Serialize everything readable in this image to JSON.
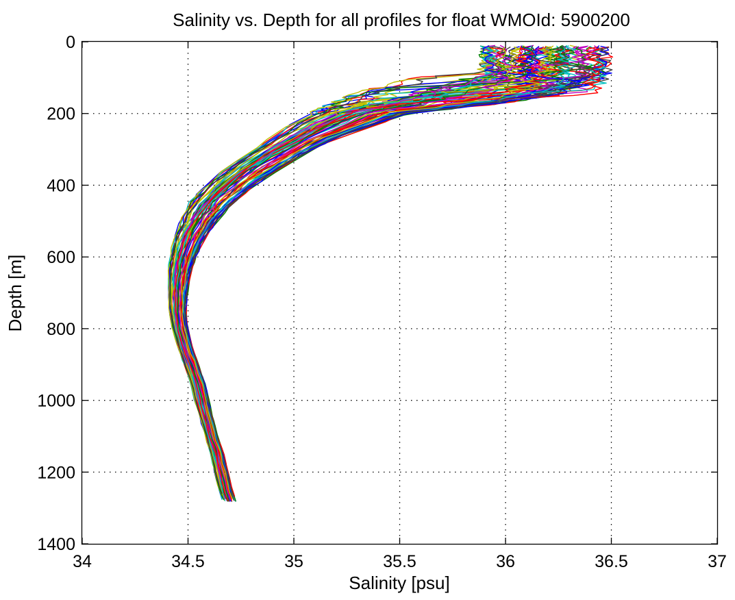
{
  "chart_data": {
    "type": "line",
    "title": "Salinity vs. Depth for all profiles for float WMOId: 5900200",
    "xlabel": "Salinity [psu]",
    "ylabel": "Depth [m]",
    "xlim": [
      34,
      37
    ],
    "ylim": [
      0,
      1400
    ],
    "y_reversed": true,
    "grid": true,
    "legend": "none",
    "xticks": [
      "34",
      "34.5",
      "35",
      "35.5",
      "36",
      "36.5",
      "37"
    ],
    "yticks": [
      "0",
      "200",
      "400",
      "600",
      "800",
      "1000",
      "1200",
      "1400"
    ],
    "colors": [
      "#0000ff",
      "#008000",
      "#ff0000",
      "#00bfbf",
      "#bf00bf",
      "#bfbf00",
      "#404040"
    ],
    "envelope": {
      "depth": [
        10,
        30,
        60,
        90,
        120,
        150,
        175,
        200,
        250,
        300,
        350,
        400,
        450,
        500,
        550,
        600,
        650,
        700,
        750,
        800,
        850,
        900,
        950,
        1000,
        1050,
        1100,
        1150,
        1200,
        1250,
        1285
      ],
      "salinity_min": [
        35.87,
        35.87,
        35.75,
        35.58,
        35.4,
        35.25,
        35.15,
        35.06,
        34.93,
        34.8,
        34.68,
        34.58,
        34.5,
        34.46,
        34.43,
        34.41,
        34.405,
        34.405,
        34.41,
        34.425,
        34.45,
        34.48,
        34.51,
        34.53,
        34.555,
        34.58,
        34.605,
        34.625,
        34.645,
        34.665
      ],
      "salinity_max": [
        36.55,
        36.55,
        36.52,
        36.45,
        36.4,
        36.25,
        35.95,
        35.55,
        35.3,
        35.1,
        34.95,
        34.82,
        34.72,
        34.64,
        34.58,
        34.54,
        34.51,
        34.5,
        34.49,
        34.5,
        34.52,
        34.55,
        34.58,
        34.6,
        34.62,
        34.64,
        34.67,
        34.69,
        34.71,
        34.73
      ]
    },
    "series_count": 70,
    "profile_bottoms": [
      1040,
      1285
    ]
  }
}
